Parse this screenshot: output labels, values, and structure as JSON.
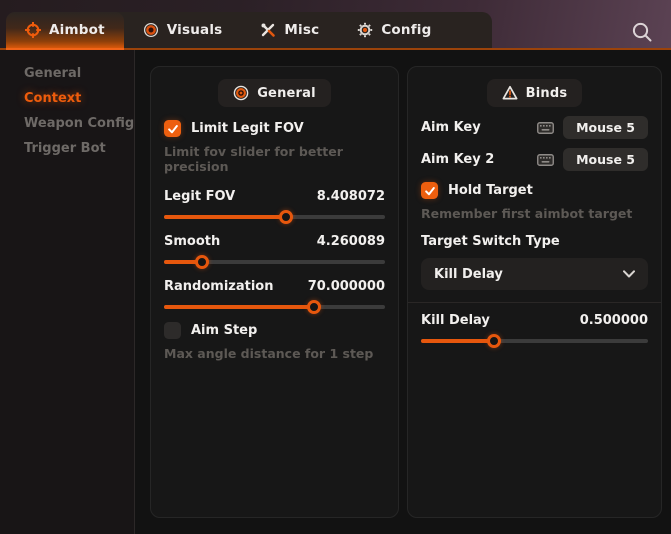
{
  "colors": {
    "accent": "#ed5f0e",
    "panel_bg": "#171717",
    "header_purple": "#5b4253"
  },
  "header": {
    "tabs": [
      {
        "label": "Aimbot",
        "icon": "crosshair-icon",
        "active": true
      },
      {
        "label": "Visuals",
        "icon": "eye-icon",
        "active": false
      },
      {
        "label": "Misc",
        "icon": "tools-icon",
        "active": false
      },
      {
        "label": "Config",
        "icon": "gear-icon",
        "active": false
      }
    ],
    "search_icon": "search-icon"
  },
  "sidebar": {
    "items": [
      {
        "label": "General",
        "active": false
      },
      {
        "label": "Context",
        "active": true
      },
      {
        "label": "Weapon Config",
        "active": false
      },
      {
        "label": "Trigger Bot",
        "active": false
      }
    ]
  },
  "panels": {
    "general": {
      "title": "General",
      "icon": "eye-target-icon",
      "limit_legit_fov": {
        "label": "Limit Legit FOV",
        "checked": true,
        "description": "Limit fov slider for better precision"
      },
      "legit_fov": {
        "label": "Legit FOV",
        "value": "8.408072",
        "percent": 55
      },
      "smooth": {
        "label": "Smooth",
        "value": "4.260089",
        "percent": 17
      },
      "randomization": {
        "label": "Randomization",
        "value": "70.000000",
        "percent": 68
      },
      "aim_step": {
        "label": "Aim Step",
        "checked": false,
        "description": "Max angle distance for 1 step"
      }
    },
    "binds": {
      "title": "Binds",
      "icon": "warning-triangle-icon",
      "aim_key": {
        "label": "Aim Key",
        "value": "Mouse 5"
      },
      "aim_key_2": {
        "label": "Aim Key 2",
        "value": "Mouse 5"
      },
      "hold_target": {
        "label": "Hold Target",
        "checked": true,
        "description": "Remember first aimbot target"
      },
      "target_switch_type": {
        "label": "Target Switch Type",
        "selected": "Kill Delay"
      },
      "kill_delay": {
        "label": "Kill Delay",
        "value": "0.500000",
        "percent": 32
      }
    }
  }
}
